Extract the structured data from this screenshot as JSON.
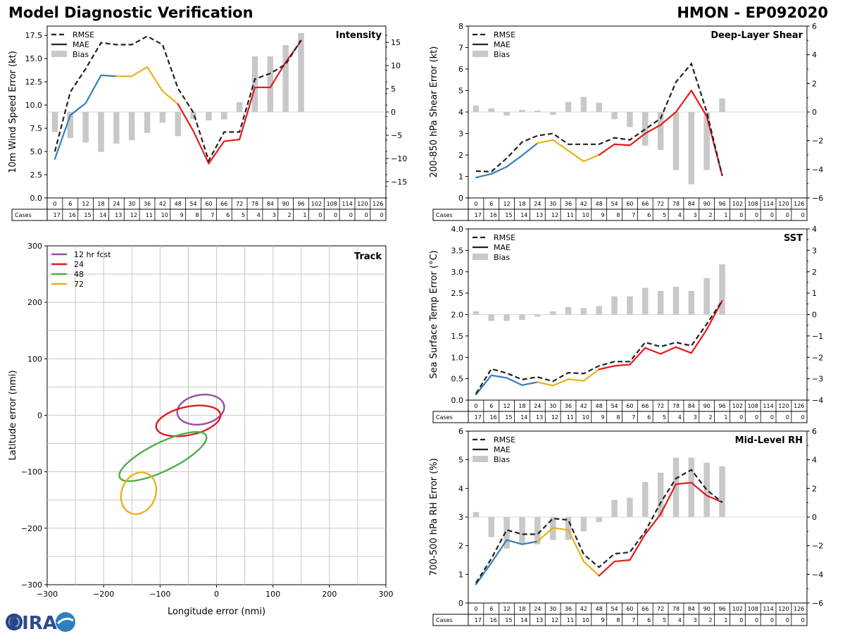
{
  "header": {
    "title": "Model Diagnostic Verification",
    "model": "HMON - EP092020"
  },
  "logo": {
    "text": "CIRA"
  },
  "colors": {
    "early": "#377eb8",
    "mid": "#e6b217",
    "late": "#e41a1c",
    "rmse": "#222222",
    "bias": "#c8c8c8",
    "grid": "#c8c8c8",
    "track_12": "#984ea3",
    "track_24": "#e41a1c",
    "track_48": "#4daf4a",
    "track_72": "#e6b217"
  },
  "legend_labels": {
    "rmse": "RMSE",
    "mae": "MAE",
    "bias": "Bias"
  },
  "cases_label": "Cases",
  "forecast_hours": [
    0,
    6,
    12,
    18,
    24,
    30,
    36,
    42,
    48,
    54,
    60,
    66,
    72,
    78,
    84,
    90,
    96,
    102,
    108,
    114,
    120,
    126
  ],
  "cases": [
    17,
    16,
    15,
    14,
    13,
    12,
    11,
    10,
    9,
    8,
    7,
    6,
    5,
    4,
    3,
    2,
    1,
    0,
    0,
    0,
    0,
    0
  ],
  "chart_data": [
    {
      "id": "intensity",
      "type": "line",
      "title": "Intensity",
      "ylabel": "10m Wind Speed Error (kt)",
      "ylim": [
        0,
        18.5
      ],
      "yticks": [
        0.0,
        2.5,
        5.0,
        7.5,
        10.0,
        12.5,
        15.0,
        17.5
      ],
      "y2lim": [
        -18.5,
        18.5
      ],
      "y2ticks": [
        -15,
        -10,
        -5,
        0,
        5,
        10,
        15
      ],
      "x": [
        0,
        6,
        12,
        18,
        24,
        30,
        36,
        42,
        48,
        54,
        60,
        66,
        72,
        78,
        84,
        90,
        96
      ],
      "rmse": [
        5.0,
        11.4,
        13.9,
        16.7,
        16.5,
        16.5,
        17.4,
        16.5,
        11.8,
        9.2,
        4.0,
        7.1,
        7.1,
        12.8,
        13.4,
        14.4,
        17.0
      ],
      "mae": [
        4.2,
        8.9,
        10.2,
        13.2,
        13.1,
        13.1,
        14.1,
        11.5,
        10.1,
        7.2,
        3.7,
        6.1,
        6.3,
        11.9,
        11.9,
        14.6,
        16.9
      ],
      "bias": [
        -4.3,
        -5.6,
        -6.6,
        -8.6,
        -6.8,
        -6.1,
        -4.5,
        -2.3,
        -5.2,
        -1.5,
        -1.8,
        -1.6,
        2.1,
        12.0,
        12.0,
        14.4,
        17.0
      ]
    },
    {
      "id": "shear",
      "type": "line",
      "title": "Deep-Layer Shear",
      "ylabel": "200-850 hPa Shear Error (kt)",
      "ylim": [
        0,
        8
      ],
      "yticks": [
        0,
        1,
        2,
        3,
        4,
        5,
        6,
        7,
        8
      ],
      "y2lim": [
        -6,
        6
      ],
      "y2ticks": [
        -6,
        -4,
        -2,
        0,
        2,
        4,
        6
      ],
      "x": [
        0,
        6,
        12,
        18,
        24,
        30,
        36,
        42,
        48,
        54,
        60,
        66,
        72,
        78,
        84,
        90,
        96
      ],
      "rmse": [
        1.25,
        1.22,
        1.85,
        2.6,
        2.9,
        3.0,
        2.5,
        2.5,
        2.5,
        2.8,
        2.7,
        3.2,
        3.7,
        5.4,
        6.25,
        4.0,
        1.05
      ],
      "mae": [
        0.95,
        1.12,
        1.45,
        1.98,
        2.55,
        2.7,
        2.2,
        1.7,
        2.0,
        2.5,
        2.45,
        3.0,
        3.4,
        4.0,
        5.0,
        3.8,
        1.05
      ],
      "bias": [
        0.45,
        0.25,
        -0.25,
        0.15,
        0.1,
        -0.2,
        0.7,
        1.05,
        0.65,
        -0.5,
        -1.05,
        -2.35,
        -2.65,
        -4.05,
        -5.05,
        -4.05,
        0.95
      ]
    },
    {
      "id": "sst",
      "type": "line",
      "title": "SST",
      "ylabel": "Sea Surface Temp Error (°C)",
      "ylim": [
        0,
        4
      ],
      "yticks": [
        0.0,
        0.5,
        1.0,
        1.5,
        2.0,
        2.5,
        3.0,
        3.5,
        4.0
      ],
      "y2lim": [
        -4,
        4
      ],
      "y2ticks": [
        -4,
        -3,
        -2,
        -1,
        0,
        1,
        2,
        3,
        4
      ],
      "x": [
        0,
        6,
        12,
        18,
        24,
        30,
        36,
        42,
        48,
        54,
        60,
        66,
        72,
        78,
        84,
        90,
        96
      ],
      "rmse": [
        0.15,
        0.73,
        0.63,
        0.48,
        0.54,
        0.44,
        0.64,
        0.62,
        0.8,
        0.9,
        0.9,
        1.35,
        1.25,
        1.35,
        1.27,
        1.78,
        2.32
      ],
      "mae": [
        0.13,
        0.58,
        0.52,
        0.35,
        0.42,
        0.34,
        0.49,
        0.45,
        0.72,
        0.8,
        0.83,
        1.22,
        1.08,
        1.24,
        1.1,
        1.65,
        2.32
      ],
      "bias": [
        0.15,
        -0.3,
        -0.3,
        -0.25,
        -0.1,
        0.15,
        0.35,
        0.3,
        0.4,
        0.85,
        0.85,
        1.25,
        1.1,
        1.3,
        1.1,
        1.7,
        2.35
      ]
    },
    {
      "id": "rh",
      "type": "line",
      "title": "Mid-Level RH",
      "ylabel": "700-500 hPa RH Error (%)",
      "ylim": [
        0,
        6
      ],
      "yticks": [
        0,
        1,
        2,
        3,
        4,
        5,
        6
      ],
      "y2lim": [
        -6,
        6
      ],
      "y2ticks": [
        -6,
        -4,
        -2,
        0,
        2,
        4,
        6
      ],
      "x": [
        0,
        6,
        12,
        18,
        24,
        30,
        36,
        42,
        48,
        54,
        60,
        66,
        72,
        78,
        84,
        90,
        96
      ],
      "rmse": [
        0.7,
        1.55,
        2.55,
        2.4,
        2.4,
        2.95,
        2.9,
        1.7,
        1.25,
        1.72,
        1.77,
        2.5,
        3.5,
        4.35,
        4.65,
        3.95,
        3.52
      ],
      "mae": [
        0.65,
        1.4,
        2.2,
        2.05,
        2.15,
        2.62,
        2.55,
        1.45,
        0.95,
        1.45,
        1.5,
        2.4,
        3.1,
        4.15,
        4.2,
        3.75,
        3.52
      ],
      "bias": [
        0.35,
        -1.4,
        -2.2,
        -1.9,
        -1.9,
        -1.6,
        -1.6,
        -1.0,
        -0.35,
        1.2,
        1.35,
        2.45,
        3.1,
        4.15,
        4.15,
        3.8,
        3.55
      ]
    },
    {
      "id": "track",
      "type": "scatter",
      "title": "Track",
      "xlabel": "Longitude error (nmi)",
      "ylabel": "Latitude error (nmi)",
      "xlim": [
        -300,
        300
      ],
      "ylim": [
        -300,
        300
      ],
      "xticks": [
        -300,
        -200,
        -100,
        0,
        100,
        200,
        300
      ],
      "yticks": [
        -300,
        -200,
        -100,
        0,
        100,
        200,
        300
      ],
      "ellipses": [
        {
          "label": "12 hr fcst",
          "cx": -28,
          "cy": 10,
          "rx": 42,
          "ry": 26,
          "angle": 10
        },
        {
          "label": "24",
          "cx": -50,
          "cy": -10,
          "rx": 58,
          "ry": 25,
          "angle": 12
        },
        {
          "label": "48",
          "cx": -95,
          "cy": -73,
          "rx": 85,
          "ry": 25,
          "angle": 26
        },
        {
          "label": "72",
          "cx": -138,
          "cy": -138,
          "rx": 38,
          "ry": 30,
          "angle": 68
        }
      ]
    }
  ]
}
